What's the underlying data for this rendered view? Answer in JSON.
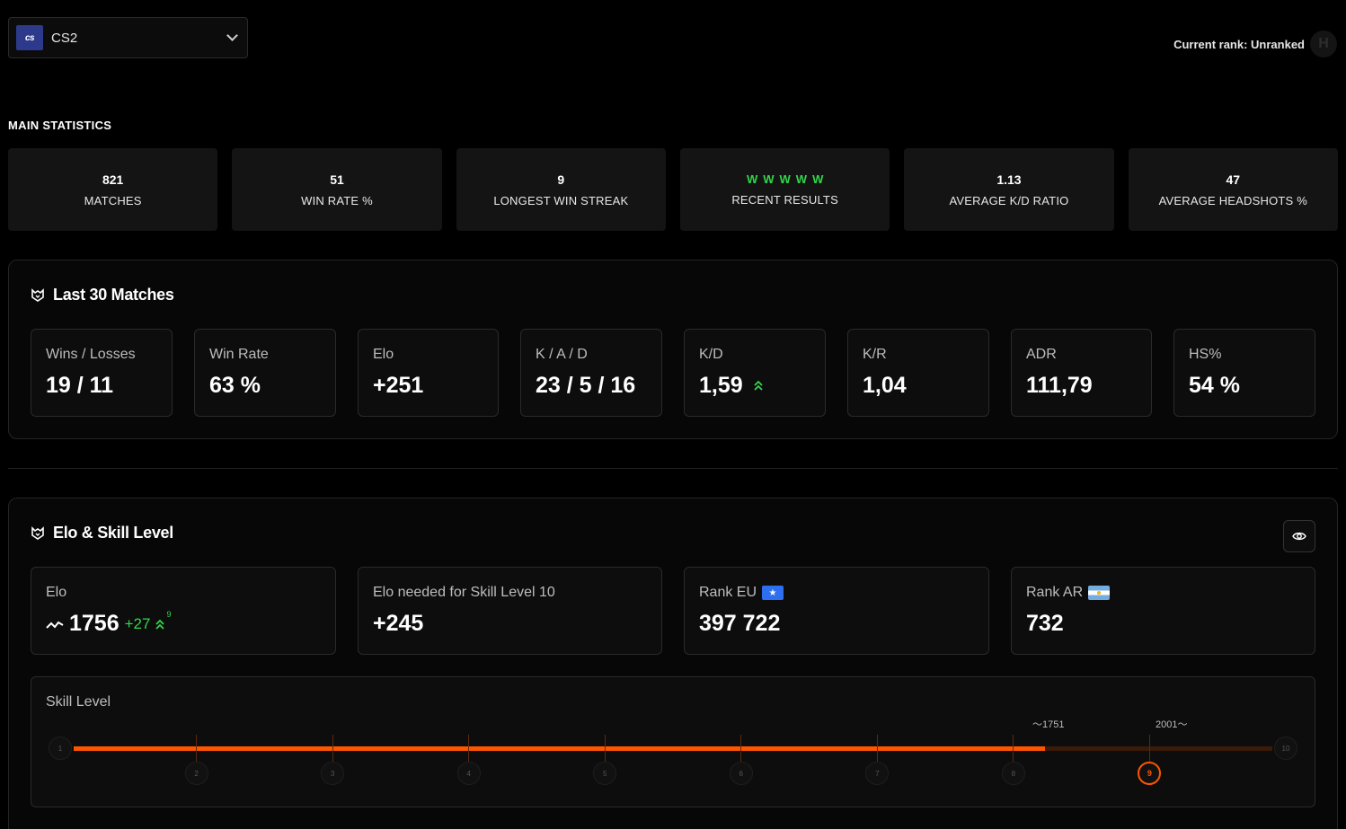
{
  "header": {
    "game_logo": "cs",
    "game_name": "CS2",
    "current_rank": "Current rank: Unranked"
  },
  "main_statistics": {
    "title": "MAIN STATISTICS",
    "cards": [
      {
        "value": "821",
        "label": "MATCHES"
      },
      {
        "value": "51",
        "label": "WIN RATE %"
      },
      {
        "value": "9",
        "label": "LONGEST WIN STREAK"
      },
      {
        "value": "",
        "label": "RECENT RESULTS"
      },
      {
        "value": "1.13",
        "label": "AVERAGE K/D RATIO"
      },
      {
        "value": "47",
        "label": "AVERAGE HEADSHOTS %"
      }
    ],
    "recent_results": [
      "W",
      "W",
      "W",
      "W",
      "W"
    ],
    "win_color": "#32d74b"
  },
  "last30": {
    "title": "Last 30 Matches",
    "boxes": [
      {
        "label": "Wins / Losses",
        "value": "19 / 11"
      },
      {
        "label": "Win Rate",
        "value": "63 %"
      },
      {
        "label": "Elo",
        "value": "+251"
      },
      {
        "label": "K / A / D",
        "value": "23 / 5 / 16"
      },
      {
        "label": "K/D",
        "value": "1,59"
      },
      {
        "label": "K/R",
        "value": "1,04"
      },
      {
        "label": "ADR",
        "value": "111,79"
      },
      {
        "label": "HS%",
        "value": "54 %"
      }
    ]
  },
  "elo_skill": {
    "title": "Elo & Skill Level",
    "elo": {
      "label": "Elo",
      "value": "1756",
      "delta": "+27",
      "delta_sup": "9"
    },
    "needed": {
      "label": "Elo needed for Skill Level 10",
      "value": "+245"
    },
    "rank_eu": {
      "label": "Rank EU",
      "value": "397 722"
    },
    "rank_ar": {
      "label": "Rank AR",
      "value": "732"
    },
    "skill": {
      "label": "Skill Level",
      "current_marker": "1751",
      "next_marker": "2001",
      "levels": [
        "1",
        "2",
        "3",
        "4",
        "5",
        "6",
        "7",
        "8",
        "9",
        "10"
      ],
      "current_level": 9,
      "progress": 0.81,
      "accent": "#ff5500"
    }
  }
}
